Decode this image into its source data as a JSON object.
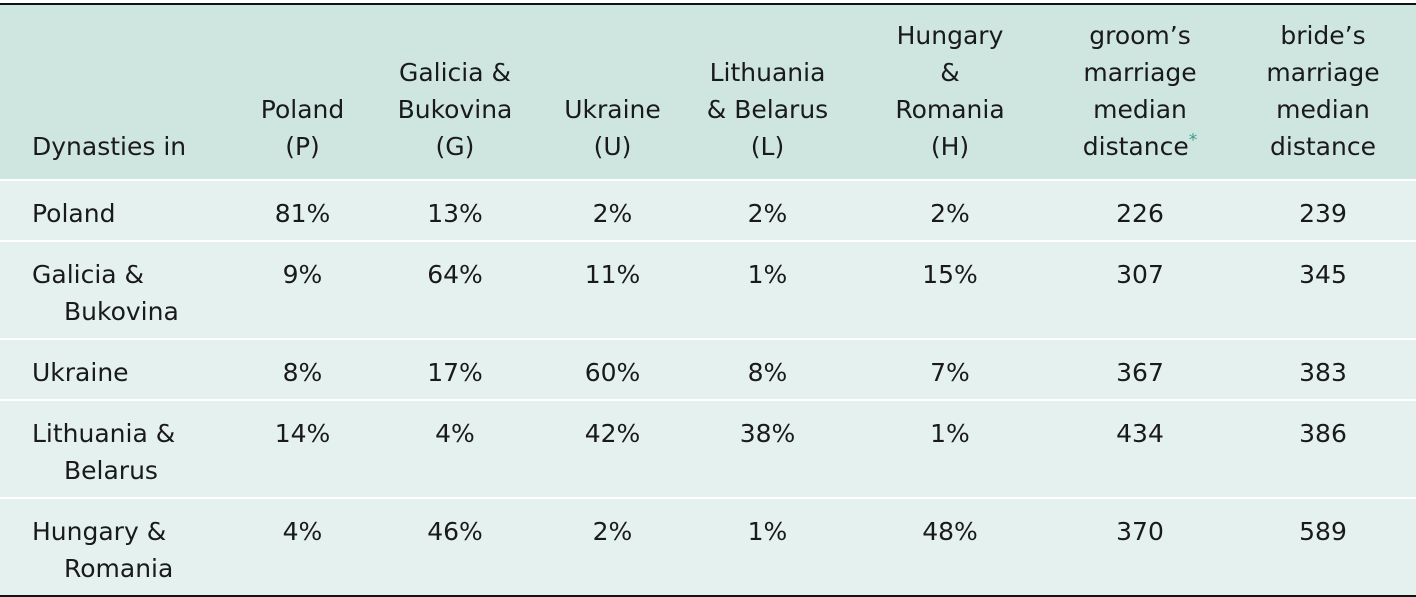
{
  "table": {
    "header": [
      [
        "Dynasties in"
      ],
      [
        "Poland",
        "(P)"
      ],
      [
        "Galicia &",
        "Bukovina",
        "(G)"
      ],
      [
        "Ukraine",
        "(U)"
      ],
      [
        "Lithuania",
        "& Belarus",
        "(L)"
      ],
      [
        "Hungary",
        "&",
        "Romania",
        "(H)"
      ],
      [
        "groom’s",
        "marriage",
        "median",
        "distance"
      ],
      [
        "bride’s",
        "marriage",
        "median",
        "distance"
      ]
    ],
    "footnote_mark": "*",
    "rows": [
      [
        [
          "Poland"
        ],
        "81%",
        "13%",
        "2%",
        "2%",
        "2%",
        "226",
        "239"
      ],
      [
        [
          "Galicia &",
          "Bukovina"
        ],
        "9%",
        "64%",
        "11%",
        "1%",
        "15%",
        "307",
        "345"
      ],
      [
        [
          "Ukraine"
        ],
        "8%",
        "17%",
        "60%",
        "8%",
        "7%",
        "367",
        "383"
      ],
      [
        [
          "Lithuania &",
          "Belarus"
        ],
        "14%",
        "4%",
        "42%",
        "38%",
        "1%",
        "434",
        "386"
      ],
      [
        [
          "Hungary &",
          "Romania"
        ],
        "4%",
        "46%",
        "2%",
        "1%",
        "48%",
        "370",
        "589"
      ]
    ]
  }
}
